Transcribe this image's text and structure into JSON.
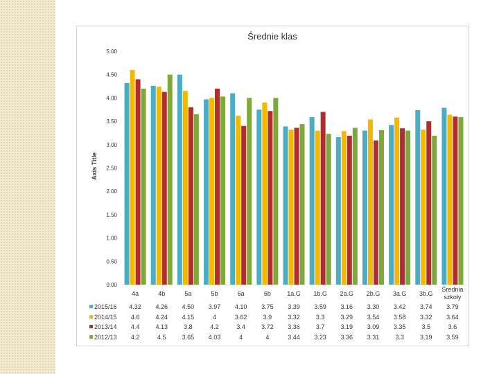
{
  "chart_data": {
    "type": "bar",
    "title": "Średnie klas",
    "ylabel": "Axis Title",
    "xlabel": "",
    "ylim": [
      0,
      5
    ],
    "yticks": [
      "0.00",
      "0.50",
      "1.00",
      "1.50",
      "2.00",
      "2.50",
      "3.00",
      "3.50",
      "4.00",
      "4.50",
      "5.00"
    ],
    "grid": false,
    "legend": "bottom data table",
    "categories": [
      "4a",
      "4b",
      "5a",
      "5b",
      "6a",
      "6b",
      "1a.G",
      "1b.G",
      "2a.G",
      "2b.G",
      "3a.G",
      "3b.G",
      "Średnia szkoły"
    ],
    "series": [
      {
        "name": "2015/16",
        "color": "#4bacc6",
        "values": [
          4.32,
          4.26,
          4.5,
          3.97,
          4.1,
          3.75,
          3.39,
          3.59,
          3.16,
          3.3,
          3.42,
          3.74,
          3.79
        ],
        "labels": [
          "4.32",
          "4.26",
          "4.50",
          "3.97",
          "4.10",
          "3.75",
          "3.39",
          "3.59",
          "3.16",
          "3.30",
          "3.42",
          "3.74",
          "3.79"
        ]
      },
      {
        "name": "2014/15",
        "color": "#f5b800",
        "values": [
          4.6,
          4.24,
          4.15,
          4,
          3.62,
          3.9,
          3.32,
          3.3,
          3.29,
          3.54,
          3.58,
          3.32,
          3.64
        ],
        "labels": [
          "4.6",
          "4.24",
          "4.15",
          "4",
          "3.62",
          "3.9",
          "3.32",
          "3.3",
          "3.29",
          "3.54",
          "3.58",
          "3.32",
          "3.64"
        ]
      },
      {
        "name": "2013/14",
        "color": "#b22d2d",
        "values": [
          4.4,
          4.13,
          3.8,
          4.2,
          3.4,
          3.72,
          3.36,
          3.7,
          3.19,
          3.09,
          3.35,
          3.5,
          3.6
        ],
        "labels": [
          "4.4",
          "4.13",
          "3.8",
          "4.2",
          "3.4",
          "3.72",
          "3.36",
          "3.7",
          "3.19",
          "3.09",
          "3.35",
          "3.5",
          "3.6"
        ]
      },
      {
        "name": "2012/13",
        "color": "#7fa83a",
        "values": [
          4.2,
          4.5,
          3.65,
          4.03,
          4,
          4,
          3.44,
          3.23,
          3.36,
          3.31,
          3.3,
          3.19,
          3.59
        ],
        "labels": [
          "4.2",
          "4.5",
          "3.65",
          "4.03",
          "4",
          "4",
          "3.44",
          "3.23",
          "3.36",
          "3.31",
          "3.3",
          "3.19",
          "3.59"
        ]
      }
    ]
  }
}
